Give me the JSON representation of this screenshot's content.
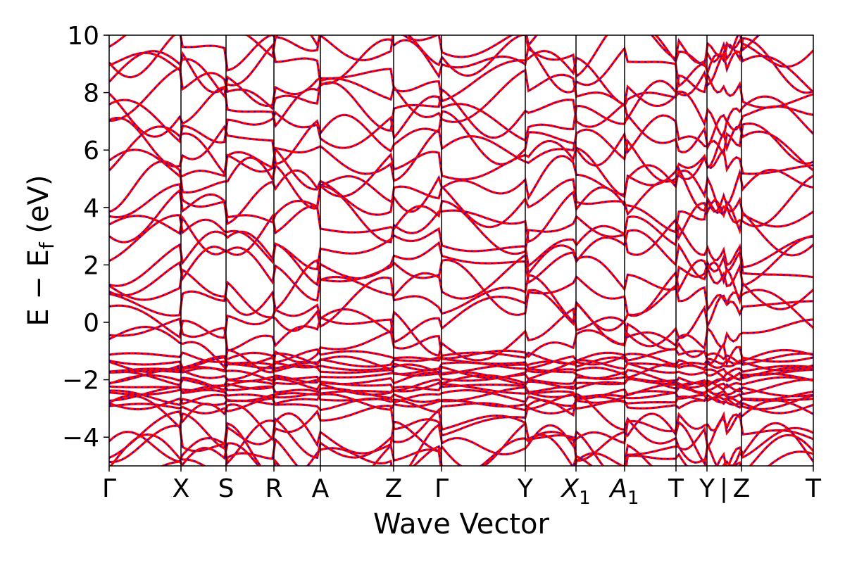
{
  "chart_data": {
    "type": "line",
    "title": "",
    "xlabel": "Wave Vector",
    "ylabel_main": "E − E",
    "ylabel_sub": "f",
    "ylabel_unit": " (eV)",
    "ylim": [
      -5,
      10
    ],
    "y_ticks": [
      -4,
      -2,
      0,
      2,
      4,
      6,
      8,
      10
    ],
    "y_tick_labels": [
      "−4",
      "−2",
      "0",
      "2",
      "4",
      "6",
      "8",
      "10"
    ],
    "x_range": [
      0,
      1
    ],
    "high_symmetry_points": [
      {
        "label": "Γ",
        "x": 0.0
      },
      {
        "label": "X",
        "x": 0.102
      },
      {
        "label": "S",
        "x": 0.166
      },
      {
        "label": "R",
        "x": 0.234
      },
      {
        "label": "A",
        "x": 0.3
      },
      {
        "label": "Z",
        "x": 0.404
      },
      {
        "label": "Γ",
        "x": 0.472
      },
      {
        "label": "Y",
        "x": 0.591
      },
      {
        "label": "X",
        "sub": "1",
        "italic": true,
        "x": 0.663
      },
      {
        "label": "A",
        "sub": "1",
        "italic": true,
        "x": 0.732
      },
      {
        "label": "T",
        "x": 0.805
      },
      {
        "label": "Y",
        "x": 0.849
      },
      {
        "label": "|",
        "x": 0.873
      },
      {
        "label": "Z",
        "x": 0.898
      },
      {
        "label": "T",
        "x": 1.0
      }
    ],
    "discontinuity_x": 0.873,
    "series": [
      {
        "color": "#ff0000",
        "style": "solid",
        "values": []
      },
      {
        "color": "#0000ff",
        "style": "dashed",
        "values": []
      }
    ],
    "approx_band_count": 42,
    "dense_band_region": [
      -2.9,
      -1.2
    ]
  }
}
